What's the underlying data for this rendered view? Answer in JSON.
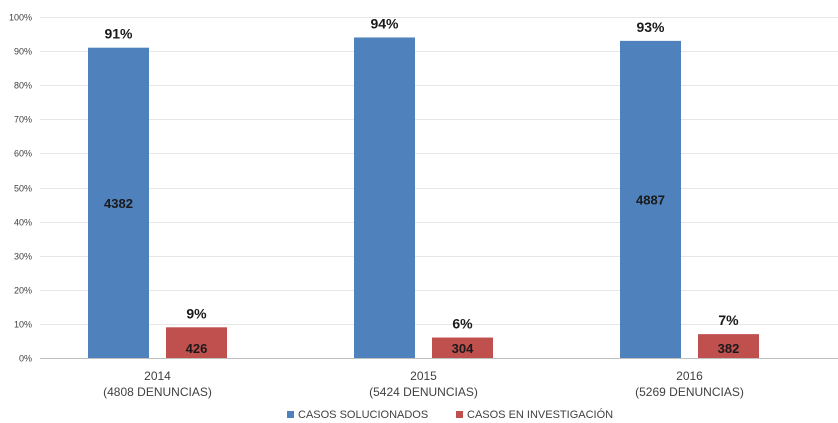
{
  "chart_data": {
    "type": "bar",
    "title": "",
    "xlabel": "",
    "ylabel": "",
    "ylim": [
      0,
      100
    ],
    "yticks": [
      "0%",
      "10%",
      "20%",
      "30%",
      "40%",
      "50%",
      "60%",
      "70%",
      "80%",
      "90%",
      "100%"
    ],
    "categories": [
      {
        "year": "2014",
        "sub": "(4808 DENUNCIAS)"
      },
      {
        "year": "2015",
        "sub": "(5424 DENUNCIAS)"
      },
      {
        "year": "2016",
        "sub": "(5269 DENUNCIAS)"
      }
    ],
    "series": [
      {
        "name": "CASOS SOLUCIONADOS",
        "color": "#4f81bd",
        "values": [
          91,
          94,
          93
        ],
        "pct_labels": [
          "91%",
          "94%",
          "93%"
        ],
        "counts": [
          "4382",
          "",
          "4887"
        ]
      },
      {
        "name": "CASOS EN INVESTIGACIÓN",
        "color": "#c0504d",
        "values": [
          9,
          6,
          7
        ],
        "pct_labels": [
          "9%",
          "6%",
          "7%"
        ],
        "counts": [
          "426",
          "304",
          "382"
        ]
      }
    ],
    "grid": true,
    "legend_position": "bottom"
  }
}
